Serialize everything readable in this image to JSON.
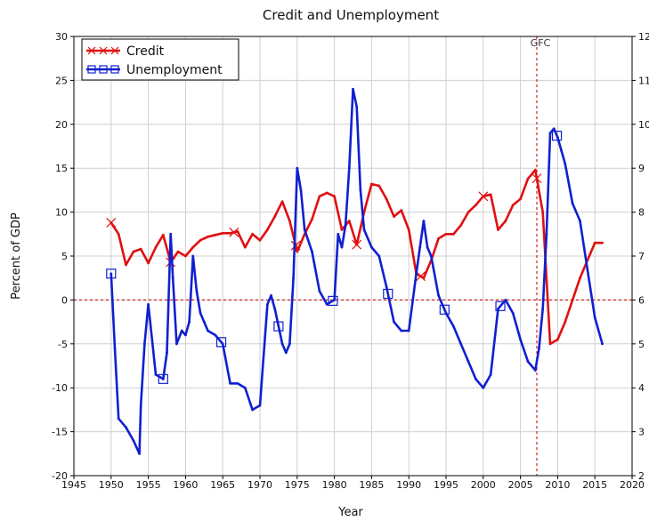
{
  "chart_data": {
    "type": "line",
    "title": "Credit and Unemployment",
    "xlabel": "Year",
    "ylabel": "Percent of GDP",
    "y2label": "",
    "xlim": [
      1945,
      2020
    ],
    "ylim": [
      -20,
      30
    ],
    "y2lim": [
      2,
      12
    ],
    "x_ticks": [
      1945,
      1950,
      1955,
      1960,
      1965,
      1970,
      1975,
      1980,
      1985,
      1990,
      1995,
      2000,
      2005,
      2010,
      2015,
      2020
    ],
    "y_ticks": [
      -20,
      -15,
      -10,
      -5,
      0,
      5,
      10,
      15,
      20,
      25,
      30
    ],
    "y2_ticks": [
      2,
      3,
      4,
      5,
      6,
      7,
      8,
      9,
      10,
      11,
      12
    ],
    "grid": true,
    "legend_position": "top-left",
    "zero_line": 0,
    "annotation": {
      "label": "GFC",
      "x": 2007.2
    },
    "series": [
      {
        "name": "Credit",
        "axis": "left",
        "color": "#e01010",
        "marker": "x",
        "marker_x": [
          1950,
          1958,
          1966.5,
          1974.8,
          1983,
          1991.6,
          2000,
          2007.2
        ],
        "x": [
          1950,
          1951,
          1952,
          1953,
          1954,
          1955,
          1956,
          1957,
          1958,
          1959,
          1960,
          1961,
          1962,
          1963,
          1964,
          1965,
          1966,
          1967,
          1968,
          1969,
          1970,
          1971,
          1972,
          1973,
          1974,
          1975,
          1976,
          1977,
          1978,
          1979,
          1980,
          1981,
          1982,
          1983,
          1984,
          1985,
          1986,
          1987,
          1988,
          1989,
          1990,
          1991,
          1992,
          1993,
          1994,
          1995,
          1996,
          1997,
          1998,
          1999,
          2000,
          2001,
          2002,
          2003,
          2004,
          2005,
          2006,
          2007,
          2008,
          2009,
          2010,
          2011,
          2012,
          2013,
          2014,
          2015,
          2016
        ],
        "values": [
          8.8,
          7.5,
          4.0,
          5.5,
          5.8,
          4.2,
          6.0,
          7.4,
          4.3,
          5.5,
          5.0,
          6.0,
          6.8,
          7.2,
          7.4,
          7.6,
          7.6,
          7.8,
          6.0,
          7.5,
          6.8,
          8.0,
          9.5,
          11.2,
          9.0,
          5.5,
          7.5,
          9.2,
          11.8,
          12.2,
          11.8,
          8.0,
          9.0,
          6.3,
          10.0,
          13.2,
          13.0,
          11.5,
          9.5,
          10.2,
          8.0,
          3.0,
          2.5,
          4.5,
          7.0,
          7.5,
          7.5,
          8.5,
          10.0,
          10.8,
          11.8,
          12.0,
          8.0,
          9.0,
          10.8,
          11.5,
          13.8,
          14.8,
          10.0,
          -5.0,
          -4.5,
          -2.5,
          0.0,
          2.5,
          4.5,
          6.5,
          6.5
        ]
      },
      {
        "name": "Unemployment",
        "axis": "right",
        "color": "#1020d0",
        "marker": "square",
        "marker_x": [
          1950,
          1957,
          1964.8,
          1972.5,
          1979.8,
          1987.2,
          1994.8,
          2002.3,
          2009.9
        ],
        "x": [
          1950,
          1950.5,
          1951,
          1952,
          1953,
          1953.8,
          1954,
          1954.5,
          1955,
          1956,
          1957,
          1957.5,
          1958,
          1958.3,
          1958.8,
          1959.5,
          1960,
          1960.5,
          1961,
          1961.5,
          1962,
          1962.5,
          1963,
          1964,
          1965,
          1966,
          1967,
          1968,
          1969,
          1970,
          1971,
          1971.5,
          1972,
          1973,
          1973.5,
          1974,
          1974.5,
          1975,
          1975.5,
          1976,
          1977,
          1978,
          1979,
          1980,
          1980.5,
          1981,
          1981.5,
          1982,
          1982.5,
          1983,
          1983.5,
          1984,
          1985,
          1986,
          1987,
          1988,
          1989,
          1990,
          1991,
          1991.5,
          1992,
          1992.5,
          1993,
          1994,
          1995,
          1996,
          1997,
          1998,
          1999,
          2000,
          2001,
          2002,
          2003,
          2004,
          2005,
          2006,
          2007,
          2007.5,
          2008,
          2008.5,
          2009,
          2009.5,
          2010,
          2010.5,
          2011,
          2012,
          2013,
          2014,
          2015,
          2016
        ],
        "values": [
          6.6,
          4.9,
          3.3,
          3.1,
          2.8,
          2.5,
          3.6,
          5.0,
          5.9,
          4.3,
          4.2,
          4.8,
          7.5,
          6.5,
          5.0,
          5.3,
          5.2,
          5.5,
          7.0,
          6.2,
          5.7,
          5.5,
          5.3,
          5.2,
          5.0,
          4.1,
          4.1,
          4.0,
          3.5,
          3.6,
          5.9,
          6.1,
          5.8,
          5.0,
          4.8,
          5.0,
          6.5,
          9.0,
          8.5,
          7.6,
          7.1,
          6.2,
          5.9,
          6.0,
          7.5,
          7.2,
          7.7,
          9.0,
          10.8,
          10.4,
          8.5,
          7.6,
          7.2,
          7.0,
          6.3,
          5.5,
          5.3,
          5.3,
          6.6,
          7.2,
          7.8,
          7.2,
          7.0,
          6.1,
          5.7,
          5.4,
          5.0,
          4.6,
          4.2,
          4.0,
          4.3,
          5.8,
          6.0,
          5.7,
          5.1,
          4.6,
          4.4,
          4.9,
          5.8,
          7.5,
          9.8,
          9.9,
          9.7,
          9.4,
          9.1,
          8.2,
          7.8,
          6.7,
          5.6,
          5.0
        ]
      }
    ]
  }
}
